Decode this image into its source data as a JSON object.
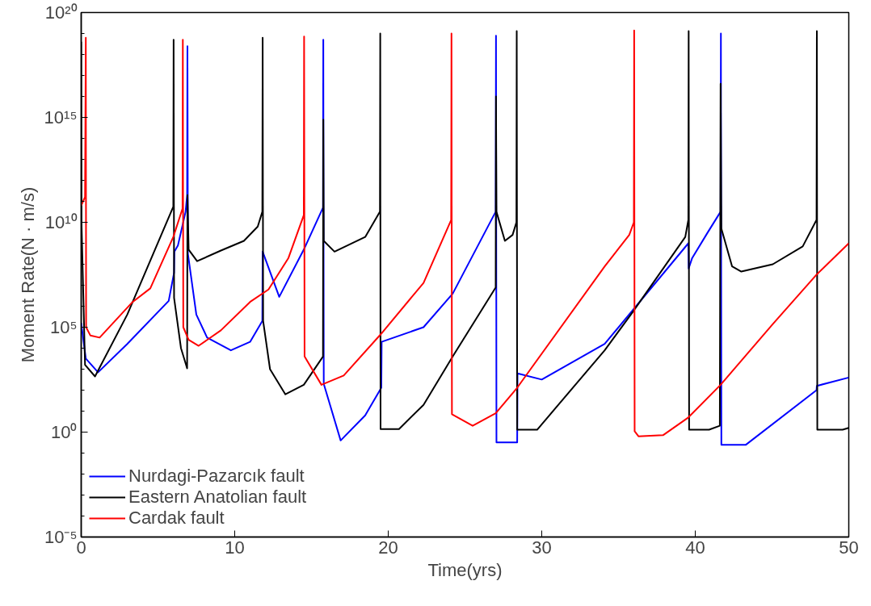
{
  "chart_data": {
    "type": "line",
    "xlabel": "Time(yrs)",
    "ylabel": "Moment Rate(N · m/s)",
    "log": "y",
    "xlim": [
      0,
      50
    ],
    "xticks": [
      0,
      10,
      20,
      30,
      40,
      50
    ],
    "ylim": [
      1e-05,
      1e+20
    ],
    "yticks": [
      {
        "value": 1e-05,
        "label": "10⁻⁵"
      },
      {
        "value": 1,
        "label": "10⁰"
      },
      {
        "value": 100000.0,
        "label": "10⁵"
      },
      {
        "value": 10000000000.0,
        "label": "10¹⁰"
      },
      {
        "value": 1000000000000000.0,
        "label": "10¹⁵"
      },
      {
        "value": 1e+20,
        "label": "10²⁰"
      }
    ],
    "grid": false,
    "legend": "bottom left",
    "line_style": "solid",
    "marker": "none",
    "series": [
      {
        "name": "Nurdagi-Pazarcık fault",
        "color": "#0000ff",
        "x": [
          0,
          0.3,
          1.1,
          3,
          5.7,
          6.05,
          6.07,
          6.3,
          6.8,
          6.9,
          6.92,
          6.95,
          7.5,
          8.2,
          9.75,
          11.0,
          11.8,
          11.82,
          12.9,
          14.5,
          15.75,
          15.77,
          15.8,
          16.9,
          18.5,
          19.55,
          19.57,
          22.3,
          24.2,
          27.0,
          27.02,
          27.05,
          28.4,
          28.42,
          30.0,
          34.1,
          39.55,
          39.57,
          39.8,
          40.8,
          41.65,
          41.67,
          41.7,
          43.3,
          47.9,
          47.92,
          50
        ],
        "values": [
          160000.0,
          3200.0,
          710.0,
          16000.0,
          1800000.0,
          40000000.0,
          400000000.0,
          790000000.0,
          32000000000.0,
          200000000000.0,
          2.5e+18,
          320000000.0,
          400000.0,
          32000.0,
          7900.0,
          20000.0,
          200000.0,
          400000000.0,
          2800000.0,
          500000000.0,
          50000000000.0,
          5e+18,
          200.0,
          0.4,
          6.3,
          130.0,
          20000.0,
          100000.0,
          4000000.0,
          32000000000.0,
          7.9e+18,
          0.32,
          0.32,
          630.0,
          320.0,
          16000.0,
          1000000000.0,
          63000000.0,
          200000000.0,
          3200000000.0,
          32000000000.0,
          1e+19,
          0.25,
          0.25,
          100.0,
          160.0,
          400.0
        ]
      },
      {
        "name": "Eastern Anatolian fault",
        "color": "#000000",
        "x": [
          0,
          0.02,
          0.25,
          0.9,
          3,
          6.0,
          6.02,
          6.05,
          6.5,
          6.9,
          6.92,
          7.0,
          7.55,
          9.1,
          10.6,
          11.5,
          11.8,
          11.82,
          11.85,
          12.3,
          13.3,
          14.5,
          15.75,
          15.77,
          15.8,
          16.5,
          18.5,
          19.46,
          19.48,
          19.5,
          20.7,
          22.3,
          24.2,
          27.0,
          27.02,
          27.05,
          27.6,
          28.1,
          28.35,
          28.37,
          28.4,
          29.7,
          34.1,
          35.9,
          39.35,
          39.55,
          39.57,
          39.6,
          40.9,
          41.6,
          41.65,
          41.7,
          42.4,
          43.0,
          45.05,
          47.0,
          47.9,
          47.92,
          47.95,
          49.6,
          50
        ],
        "values": [
          4e+18,
          10000000000.0,
          1600.0,
          450.0,
          400000.0,
          56000000000.0,
          5e+18,
          2500000.0,
          10000.0,
          1100.0,
          200000000000.0,
          500000000.0,
          140000000.0,
          450000000.0,
          1300000000.0,
          6300000000.0,
          32000000000.0,
          6.3e+18,
          200000.0,
          1000.0,
          63,
          180.0,
          4000.0,
          790000000000000.0,
          1300000000.0,
          400000000.0,
          2000000000.0,
          32000000000.0,
          1e+19,
          1.4,
          1.4,
          20,
          4000.0,
          7900000.0,
          1e+16,
          32000000000.0,
          1300000000.0,
          2500000000.0,
          10000000000.0,
          1.3e+19,
          1.3,
          1.3,
          7900.0,
          500000.0,
          2000000000.0,
          13000000000.0,
          1.3e+19,
          1.3,
          1.3,
          2,
          4e+16,
          5000000000.0,
          79000000.0,
          45000000.0,
          100000000.0,
          710000000.0,
          13000000000.0,
          1.3e+19,
          1.3,
          1.3,
          1.6
        ]
      },
      {
        "name": "Cardak fault",
        "color": "#ff0000",
        "x": [
          0,
          0.25,
          0.3,
          0.32,
          0.6,
          1.2,
          3.35,
          4.5,
          6.0,
          6.6,
          6.62,
          6.65,
          7.0,
          7.65,
          9.1,
          11.0,
          12.2,
          13.5,
          14.5,
          14.52,
          14.55,
          15.65,
          17.1,
          19.5,
          22.3,
          24.1,
          24.12,
          24.15,
          25.5,
          27.0,
          28.4,
          34.1,
          35.7,
          36.0,
          36.02,
          36.05,
          36.3,
          37.9,
          39.55,
          41.65,
          45.05,
          47.9,
          50
        ],
        "values": [
          63000000000.0,
          160000000000.0,
          6.3e+18,
          100000.0,
          40000.0,
          32000.0,
          1600000.0,
          7100000.0,
          2000000000.0,
          45000000000.0,
          5e+18,
          100000.0,
          25000.0,
          13000.0,
          71000.0,
          1600000.0,
          6300000.0,
          200000000.0,
          22000000000.0,
          7.1e+18,
          4000.0,
          180.0,
          500.0,
          45000.0,
          13000000.0,
          13000000000.0,
          1e+19,
          7.1,
          2,
          7.9,
          130.0,
          79000000.0,
          2500000000.0,
          10000000000.0,
          1.4e+19,
          1.1,
          0.63,
          0.71,
          5,
          180.0,
          140000.0,
          32000000.0,
          1000000000.0
        ]
      }
    ]
  }
}
